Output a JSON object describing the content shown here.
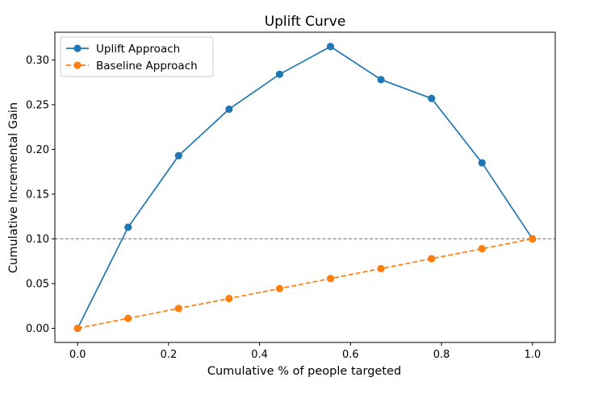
{
  "chart_data": {
    "type": "line",
    "title": "Uplift Curve",
    "xlabel": "Cumulative % of people targeted",
    "ylabel": "Cumulative Incremental Gain",
    "xlim": [
      -0.05,
      1.05
    ],
    "ylim": [
      -0.0158,
      0.331
    ],
    "xticks": [
      "0.0",
      "0.2",
      "0.4",
      "0.6",
      "0.8",
      "1.0"
    ],
    "yticks": [
      "0.00",
      "0.05",
      "0.10",
      "0.15",
      "0.20",
      "0.25",
      "0.30"
    ],
    "grid": false,
    "legend_position": "top-left",
    "reference_line": {
      "y": 0.1,
      "style": "dashed",
      "color": "#808080"
    },
    "series": [
      {
        "name": "Uplift Approach",
        "color": "#1f77b4",
        "linestyle": "solid",
        "marker": "circle",
        "x": [
          0.0,
          0.111,
          0.222,
          0.333,
          0.444,
          0.556,
          0.667,
          0.778,
          0.889,
          1.0
        ],
        "y": [
          0.0,
          0.113,
          0.193,
          0.245,
          0.284,
          0.315,
          0.278,
          0.257,
          0.185,
          0.1
        ]
      },
      {
        "name": "Baseline Approach",
        "color": "#ff7f0e",
        "linestyle": "dashed",
        "marker": "circle",
        "x": [
          0.0,
          0.111,
          0.222,
          0.333,
          0.444,
          0.556,
          0.667,
          0.778,
          0.889,
          1.0
        ],
        "y": [
          0.0,
          0.0111,
          0.0222,
          0.0333,
          0.0444,
          0.0556,
          0.0667,
          0.0778,
          0.0889,
          0.1
        ]
      }
    ]
  }
}
